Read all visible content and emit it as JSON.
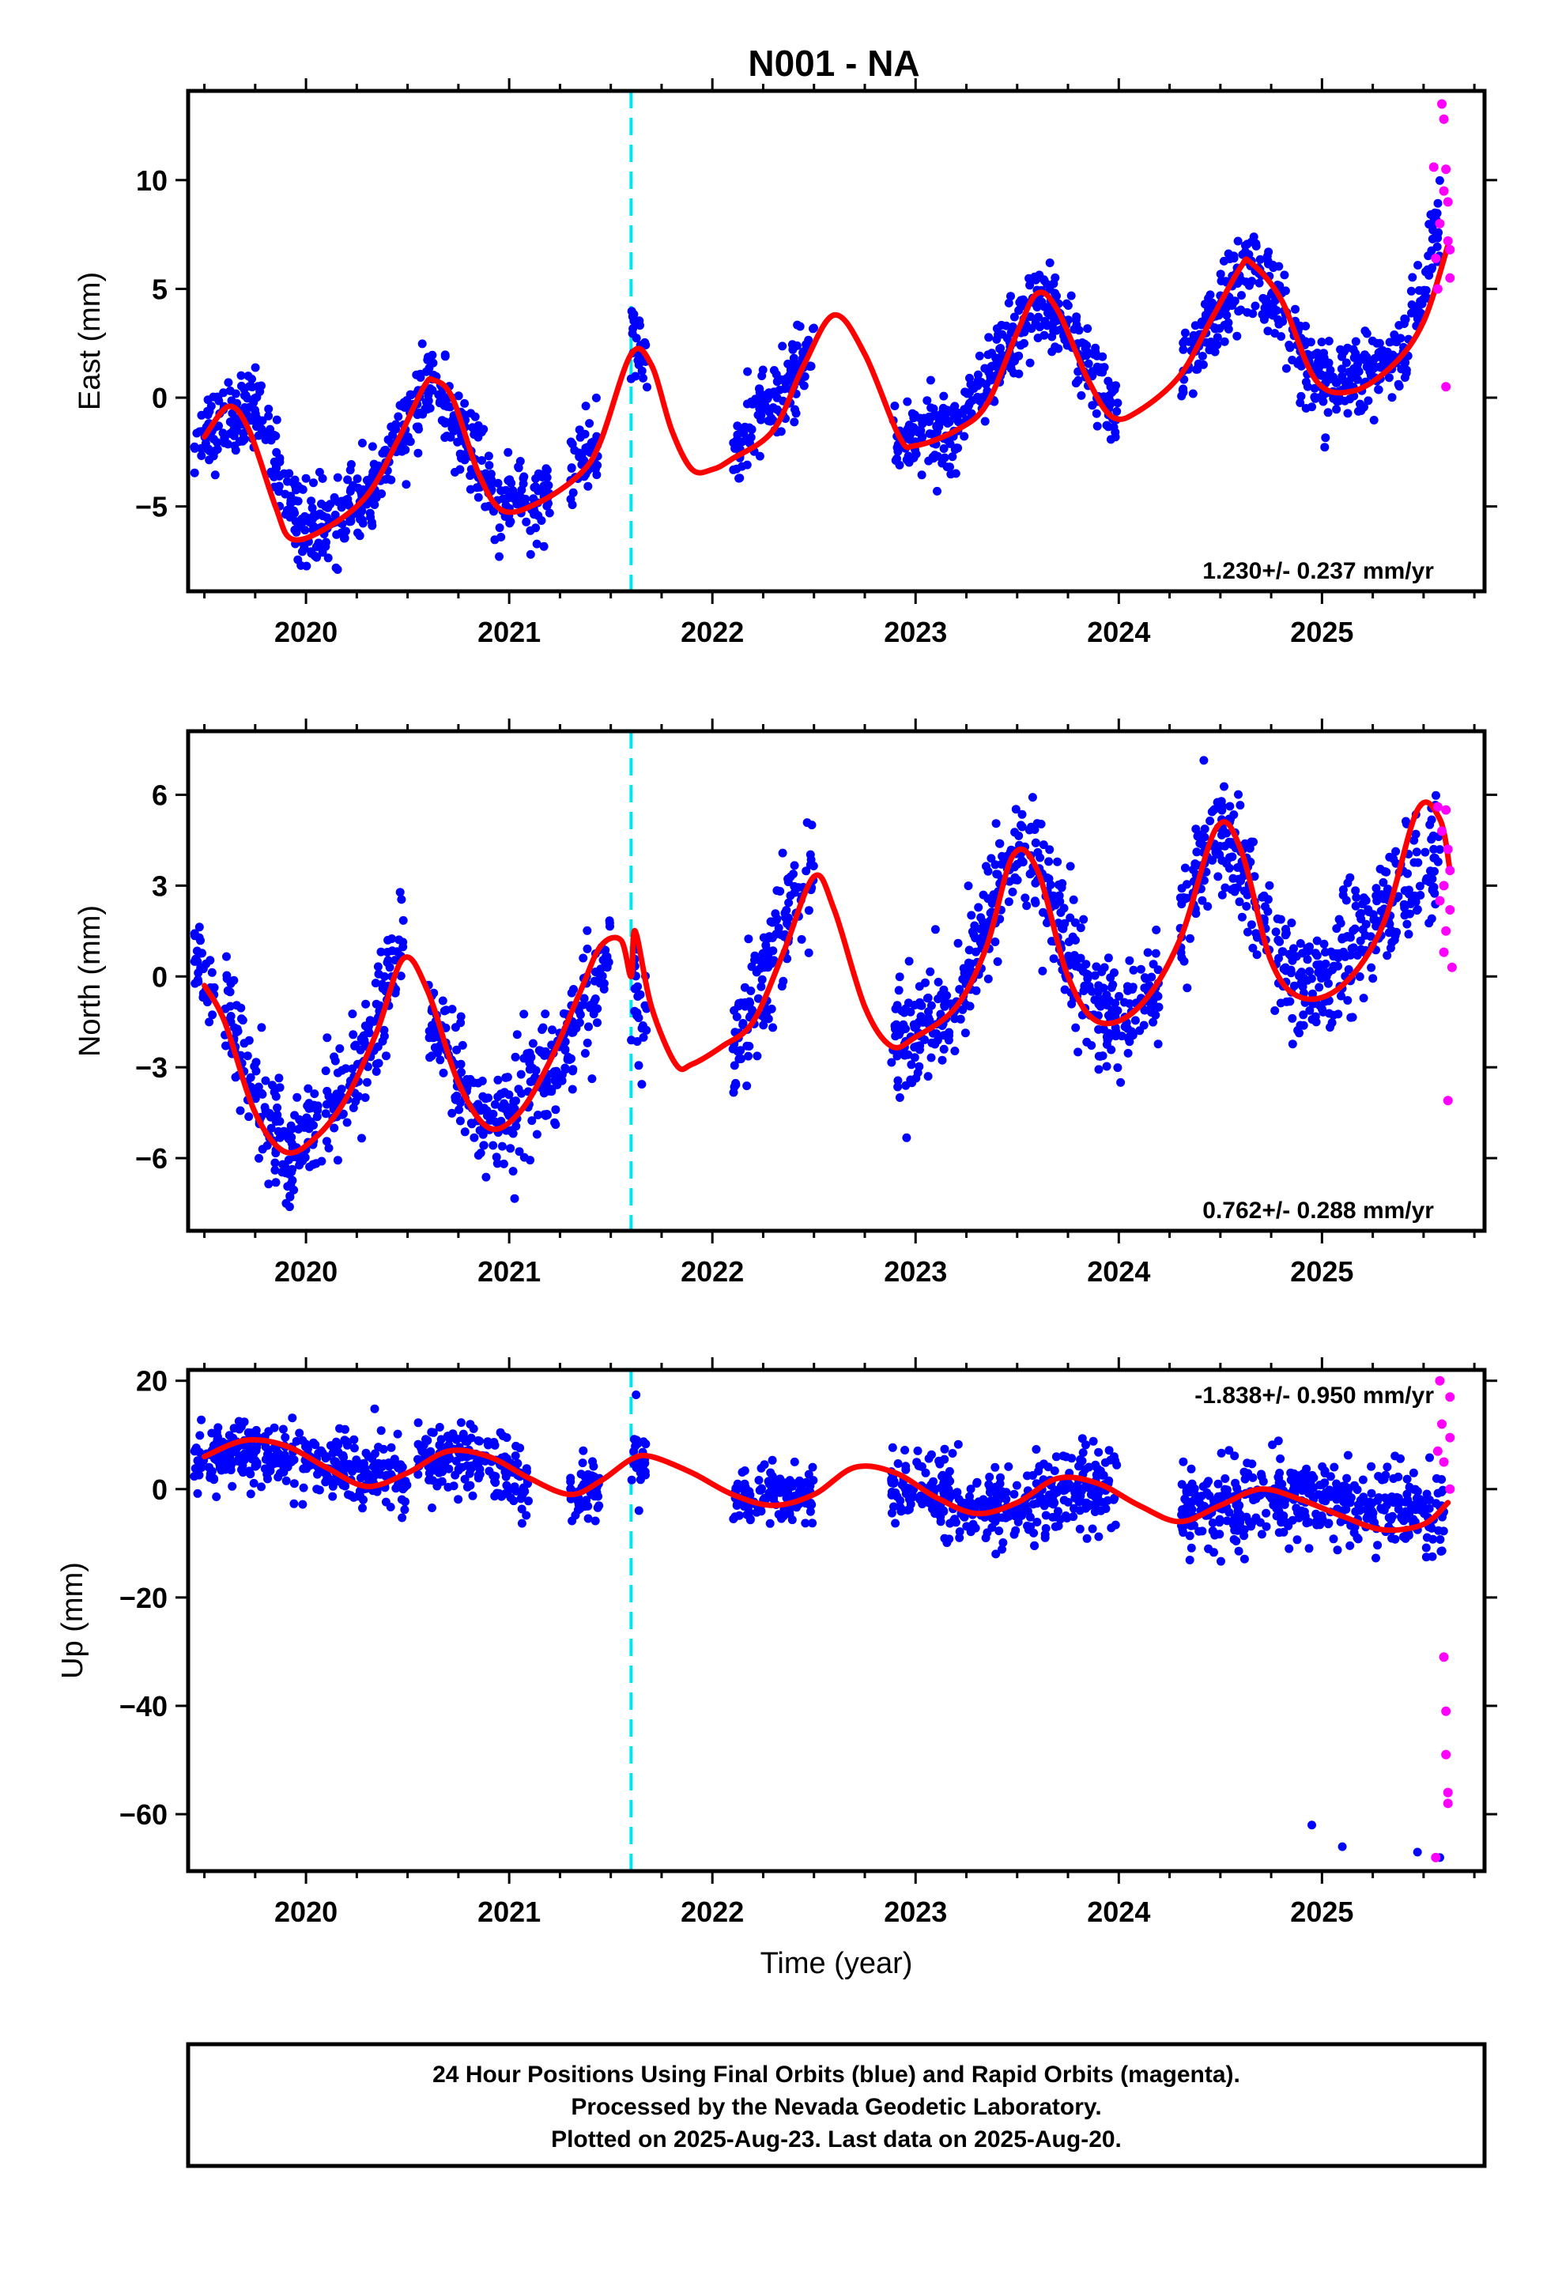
{
  "title": "N001 - NA",
  "colors": {
    "final": "#0000ff",
    "rapid": "#ff00ff",
    "model": "#ff0000",
    "offset": "#00e5ee",
    "frame": "#000000"
  },
  "chart_data": [
    {
      "type": "scatter",
      "component": "east",
      "ylabel": "East (mm)",
      "xlabel": "",
      "xlim": [
        2019.42,
        2025.8
      ],
      "ylim": [
        -8.9,
        14.1
      ],
      "x_ticks": [
        "2020",
        "2021",
        "2022",
        "2023",
        "2024",
        "2025"
      ],
      "y_ticks": [
        -5,
        0,
        5,
        10
      ],
      "rate": "1.230+/- 0.237 mm/yr",
      "rate_position": "bottom-right",
      "offset_epoch": 2021.6,
      "model": {
        "x": [
          2019.5,
          2019.62,
          2019.72,
          2019.85,
          2019.93,
          2020.1,
          2020.3,
          2020.45,
          2020.58,
          2020.63,
          2020.72,
          2020.85,
          2020.97,
          2021.15,
          2021.35,
          2021.45,
          2021.6,
          2021.7,
          2021.8,
          2021.9,
          2022.0,
          2022.1,
          2022.3,
          2022.45,
          2022.6,
          2022.75,
          2022.92,
          2023.0,
          2023.2,
          2023.35,
          2023.5,
          2023.6,
          2023.7,
          2023.85,
          2023.97,
          2024.1,
          2024.3,
          2024.45,
          2024.6,
          2024.65,
          2024.8,
          2024.97,
          2025.15,
          2025.35,
          2025.5,
          2025.62
        ],
        "y": [
          -1.8,
          -0.4,
          -1.5,
          -5.0,
          -6.5,
          -6.0,
          -4.5,
          -2.0,
          0.5,
          0.8,
          0.0,
          -3.5,
          -5.2,
          -4.8,
          -3.5,
          -2.0,
          2.0,
          1.5,
          -1.5,
          -3.3,
          -3.3,
          -2.8,
          -1.5,
          1.5,
          3.8,
          2.0,
          -1.8,
          -2.2,
          -1.5,
          -0.3,
          3.0,
          4.8,
          4.0,
          0.8,
          -0.9,
          -0.6,
          1.0,
          3.5,
          6.0,
          6.2,
          4.5,
          0.8,
          0.3,
          1.5,
          3.5,
          7.0
        ]
      },
      "final": [
        {
          "x": [
            2019.45,
            2019.75
          ],
          "y": [
            -1.9,
            -0.3
          ],
          "a": -2.0,
          "b": -0.2,
          "sd": 0.9
        },
        {
          "x": [
            2019.75,
            2020.0
          ],
          "y": [
            -0.3,
            -6.3
          ],
          "a": -0.5,
          "b": -6.3,
          "sd": 0.9
        },
        {
          "x": [
            2020.0,
            2020.3
          ],
          "y": [
            -6.3,
            -4.7
          ],
          "a": -6.3,
          "b": -4.7,
          "sd": 0.95
        },
        {
          "x": [
            2020.3,
            2020.62
          ],
          "y": [
            -4.7,
            0.8
          ],
          "a": -4.7,
          "b": 0.8,
          "sd": 0.9
        },
        {
          "x": [
            2020.62,
            2020.97
          ],
          "y": [
            0.8,
            -5.2
          ],
          "a": 0.8,
          "b": -5.2,
          "sd": 0.95
        },
        {
          "x": [
            2020.97,
            2021.2
          ],
          "y": [
            -5.2,
            -4.5
          ],
          "a": -5.2,
          "b": -4.5,
          "sd": 0.85
        },
        {
          "x": [
            2021.3,
            2021.45
          ],
          "y": [
            -3.3,
            -2.0
          ],
          "a": -3.3,
          "b": -2.0,
          "sd": 0.9
        },
        {
          "x": [
            2021.6,
            2021.68
          ],
          "y": [
            2.5,
            1.8
          ],
          "a": 2.5,
          "b": 1.8,
          "sd": 0.9
        },
        {
          "x": [
            2022.1,
            2022.5
          ],
          "y": [
            -2.5,
            2.2
          ],
          "a": -2.5,
          "b": 2.2,
          "sd": 0.9
        },
        {
          "x": [
            2022.88,
            2023.2
          ],
          "y": [
            -1.8,
            -1.5
          ],
          "a": -1.8,
          "b": -1.5,
          "sd": 0.95
        },
        {
          "x": [
            2023.2,
            2023.62
          ],
          "y": [
            -1.5,
            4.8
          ],
          "a": -1.5,
          "b": 4.8,
          "sd": 0.9
        },
        {
          "x": [
            2023.62,
            2024.0
          ],
          "y": [
            4.8,
            -1.0
          ],
          "a": 4.8,
          "b": -1.0,
          "sd": 0.95
        },
        {
          "x": [
            2024.3,
            2024.65
          ],
          "y": [
            1.0,
            6.2
          ],
          "a": 1.0,
          "b": 6.2,
          "sd": 0.9
        },
        {
          "x": [
            2024.65,
            2025.0
          ],
          "y": [
            6.2,
            0.5
          ],
          "a": 6.2,
          "b": 0.5,
          "sd": 0.95
        },
        {
          "x": [
            2025.0,
            2025.4
          ],
          "y": [
            0.5,
            2.0
          ],
          "a": 0.5,
          "b": 2.0,
          "sd": 0.85
        },
        {
          "x": [
            2025.4,
            2025.58
          ],
          "y": [
            2.0,
            7.8
          ],
          "a": 2.0,
          "b": 7.8,
          "sd": 1.1
        }
      ],
      "rapid": {
        "x": [
          2025.55,
          2025.56,
          2025.57,
          2025.58,
          2025.59,
          2025.6,
          2025.6,
          2025.61,
          2025.61,
          2025.62,
          2025.62,
          2025.63,
          2025.63
        ],
        "y": [
          10.6,
          6.4,
          5.0,
          8.0,
          13.5,
          9.5,
          12.8,
          10.5,
          0.5,
          7.2,
          9.0,
          5.5,
          6.8
        ]
      }
    },
    {
      "type": "scatter",
      "component": "north",
      "ylabel": "North (mm)",
      "xlabel": "",
      "xlim": [
        2019.42,
        2025.8
      ],
      "ylim": [
        -8.4,
        8.1
      ],
      "x_ticks": [
        "2020",
        "2021",
        "2022",
        "2023",
        "2024",
        "2025"
      ],
      "y_ticks": [
        -6,
        -3,
        0,
        3,
        6
      ],
      "rate": "0.762+/- 0.288 mm/yr",
      "rate_position": "bottom-right",
      "offset_epoch": 2021.6,
      "model": {
        "x": [
          2019.5,
          2019.6,
          2019.75,
          2019.9,
          2020.05,
          2020.2,
          2020.35,
          2020.48,
          2020.6,
          2020.75,
          2020.9,
          2021.05,
          2021.2,
          2021.35,
          2021.45,
          2021.55,
          2021.6,
          2021.62,
          2021.7,
          2021.82,
          2021.9,
          2022.05,
          2022.2,
          2022.35,
          2022.5,
          2022.6,
          2022.75,
          2022.88,
          2023.0,
          2023.2,
          2023.35,
          2023.48,
          2023.6,
          2023.75,
          2023.9,
          2024.1,
          2024.3,
          2024.48,
          2024.6,
          2024.75,
          2024.9,
          2025.1,
          2025.3,
          2025.47,
          2025.58,
          2025.63
        ],
        "y": [
          -0.3,
          -1.5,
          -4.5,
          -5.8,
          -5.3,
          -4.0,
          -1.8,
          0.6,
          -0.5,
          -3.5,
          -5.0,
          -4.5,
          -2.8,
          -0.5,
          1.0,
          1.2,
          0.0,
          1.5,
          -1.0,
          -2.9,
          -2.9,
          -2.3,
          -1.5,
          0.8,
          3.3,
          2.2,
          -1.0,
          -2.3,
          -2.0,
          -1.0,
          1.0,
          4.0,
          3.5,
          0.0,
          -1.5,
          -1.0,
          1.2,
          4.9,
          4.2,
          0.5,
          -0.7,
          -0.3,
          1.7,
          5.5,
          5.2,
          3.5
        ]
      },
      "final": [
        {
          "x": [
            2019.45,
            2019.55
          ],
          "y": [
            0.8,
            -0.6
          ],
          "a": 0.8,
          "b": -0.6,
          "sd": 0.6
        },
        {
          "x": [
            2019.6,
            2019.9
          ],
          "y": [
            -0.8,
            -6.3
          ],
          "a": -0.8,
          "b": -6.3,
          "sd": 0.9
        },
        {
          "x": [
            2019.9,
            2020.3
          ],
          "y": [
            -6.3,
            -2.8
          ],
          "a": -6.3,
          "b": -2.8,
          "sd": 1.0
        },
        {
          "x": [
            2020.3,
            2020.48
          ],
          "y": [
            -2.8,
            1.5
          ],
          "a": -2.8,
          "b": 1.5,
          "sd": 1.0
        },
        {
          "x": [
            2020.6,
            2020.9
          ],
          "y": [
            -1.5,
            -5.2
          ],
          "a": -1.5,
          "b": -5.2,
          "sd": 0.9
        },
        {
          "x": [
            2020.9,
            2021.2
          ],
          "y": [
            -5.2,
            -3.5
          ],
          "a": -5.2,
          "b": -3.5,
          "sd": 0.95
        },
        {
          "x": [
            2021.2,
            2021.5
          ],
          "y": [
            -3.5,
            1.0
          ],
          "a": -3.5,
          "b": 1.0,
          "sd": 0.9
        },
        {
          "x": [
            2021.6,
            2021.68
          ],
          "y": [
            -0.5,
            -1.5
          ],
          "a": -0.5,
          "b": -1.5,
          "sd": 1.0
        },
        {
          "x": [
            2022.1,
            2022.5
          ],
          "y": [
            -2.0,
            3.8
          ],
          "a": -2.0,
          "b": 3.8,
          "sd": 1.0
        },
        {
          "x": [
            2022.88,
            2023.2
          ],
          "y": [
            -2.3,
            -0.8
          ],
          "a": -2.3,
          "b": -0.8,
          "sd": 1.0
        },
        {
          "x": [
            2023.2,
            2023.5
          ],
          "y": [
            -0.8,
            4.5
          ],
          "a": -0.8,
          "b": 4.5,
          "sd": 1.0
        },
        {
          "x": [
            2023.5,
            2023.95
          ],
          "y": [
            4.5,
            -1.5
          ],
          "a": 4.5,
          "b": -1.5,
          "sd": 1.0
        },
        {
          "x": [
            2023.95,
            2024.2
          ],
          "y": [
            -1.5,
            -0.5
          ],
          "a": -1.5,
          "b": -0.5,
          "sd": 0.8
        },
        {
          "x": [
            2024.3,
            2024.5
          ],
          "y": [
            1.5,
            5.0
          ],
          "a": 1.5,
          "b": 5.0,
          "sd": 1.0
        },
        {
          "x": [
            2024.5,
            2024.9
          ],
          "y": [
            5.0,
            -0.7
          ],
          "a": 5.0,
          "b": -0.7,
          "sd": 1.0
        },
        {
          "x": [
            2024.9,
            2025.3
          ],
          "y": [
            -0.7,
            2.0
          ],
          "a": -0.7,
          "b": 2.0,
          "sd": 0.95
        },
        {
          "x": [
            2025.3,
            2025.58
          ],
          "y": [
            2.0,
            4.0
          ],
          "a": 2.0,
          "b": 4.0,
          "sd": 1.0
        }
      ],
      "rapid": {
        "x": [
          2025.57,
          2025.58,
          2025.59,
          2025.6,
          2025.6,
          2025.61,
          2025.61,
          2025.62,
          2025.62,
          2025.63,
          2025.63,
          2025.64
        ],
        "y": [
          5.6,
          2.5,
          4.8,
          0.8,
          3.0,
          5.5,
          1.5,
          4.2,
          -4.1,
          3.5,
          2.2,
          0.3
        ]
      }
    },
    {
      "type": "scatter",
      "component": "up",
      "ylabel": "Up (mm)",
      "xlabel": "Time (year)",
      "xlim": [
        2019.42,
        2025.8
      ],
      "ylim": [
        -70.5,
        22
      ],
      "x_ticks": [
        "2020",
        "2021",
        "2022",
        "2023",
        "2024",
        "2025"
      ],
      "y_ticks": [
        -60,
        -40,
        -20,
        0,
        20
      ],
      "rate": "-1.838+/- 0.950 mm/yr",
      "rate_position": "top-right",
      "offset_epoch": 2021.6,
      "model": {
        "x": [
          2019.5,
          2019.7,
          2019.9,
          2020.1,
          2020.3,
          2020.5,
          2020.7,
          2020.9,
          2021.1,
          2021.3,
          2021.45,
          2021.6,
          2021.7,
          2021.9,
          2022.1,
          2022.3,
          2022.5,
          2022.7,
          2022.9,
          2023.1,
          2023.3,
          2023.5,
          2023.7,
          2023.9,
          2024.1,
          2024.3,
          2024.5,
          2024.7,
          2024.9,
          2025.1,
          2025.3,
          2025.5,
          2025.62
        ],
        "y": [
          6.0,
          9.0,
          8.0,
          4.0,
          0.5,
          3.0,
          7.0,
          6.0,
          2.0,
          -1.0,
          1.5,
          5.5,
          6.0,
          3.0,
          -1.0,
          -3.0,
          -1.0,
          4.0,
          3.0,
          -1.5,
          -4.5,
          -2.5,
          2.0,
          1.0,
          -3.0,
          -6.0,
          -3.0,
          0.0,
          -2.0,
          -5.0,
          -7.5,
          -6.5,
          -2.5
        ]
      },
      "final": [
        {
          "x": [
            2019.45,
            2020.05
          ],
          "y": [
            6.0,
            8.0
          ],
          "a": 6.0,
          "b": 6.5,
          "sd": 3.0
        },
        {
          "x": [
            2020.05,
            2020.5
          ],
          "y": [
            4.0,
            2.0
          ],
          "a": 4.0,
          "b": 2.0,
          "sd": 3.2
        },
        {
          "x": [
            2020.55,
            2021.0
          ],
          "y": [
            7.0,
            4.0
          ],
          "a": 7.0,
          "b": 4.0,
          "sd": 3.2
        },
        {
          "x": [
            2021.0,
            2021.1
          ],
          "y": [
            2.0,
            1.0
          ],
          "a": 2.0,
          "b": 1.0,
          "sd": 3.0
        },
        {
          "x": [
            2021.3,
            2021.45
          ],
          "y": [
            -1.0,
            0.5
          ],
          "a": -1.0,
          "b": 0.5,
          "sd": 3.0
        },
        {
          "x": [
            2021.6,
            2021.68
          ],
          "y": [
            6.0,
            5.5
          ],
          "a": 6.0,
          "b": 5.5,
          "sd": 3.5
        },
        {
          "x": [
            2022.1,
            2022.5
          ],
          "y": [
            -1.0,
            -2.0
          ],
          "a": -1.0,
          "b": -2.0,
          "sd": 3.0
        },
        {
          "x": [
            2022.88,
            2023.4
          ],
          "y": [
            1.0,
            -4.0
          ],
          "a": 1.0,
          "b": -4.0,
          "sd": 3.5
        },
        {
          "x": [
            2023.4,
            2024.0
          ],
          "y": [
            -4.0,
            1.0
          ],
          "a": -4.0,
          "b": 1.0,
          "sd": 3.8
        },
        {
          "x": [
            2024.3,
            2024.9
          ],
          "y": [
            -4.0,
            -1.0
          ],
          "a": -4.0,
          "b": -1.0,
          "sd": 3.8
        },
        {
          "x": [
            2024.9,
            2025.6
          ],
          "y": [
            -1.0,
            -5.0
          ],
          "a": -1.0,
          "b": -5.0,
          "sd": 3.8
        }
      ],
      "extra_final": {
        "x": [
          2024.95,
          2025.1,
          2025.47,
          2025.58
        ],
        "y": [
          -62.0,
          -66.0,
          -67.0,
          -68.0
        ]
      },
      "rapid": {
        "x": [
          2025.56,
          2025.57,
          2025.58,
          2025.59,
          2025.6,
          2025.6,
          2025.61,
          2025.61,
          2025.62,
          2025.62,
          2025.63,
          2025.63,
          2025.63
        ],
        "y": [
          -68.0,
          7.0,
          20.0,
          12.0,
          5.0,
          -31.0,
          -41.0,
          -49.0,
          -56.0,
          -58.0,
          9.5,
          17.0,
          0.0
        ]
      }
    }
  ],
  "footer": {
    "line1": "24 Hour Positions Using Final Orbits (blue) and Rapid Orbits (magenta).",
    "line2": "Processed by the Nevada Geodetic Laboratory.",
    "line3": "Plotted on 2025-Aug-23. Last data on 2025-Aug-20."
  }
}
